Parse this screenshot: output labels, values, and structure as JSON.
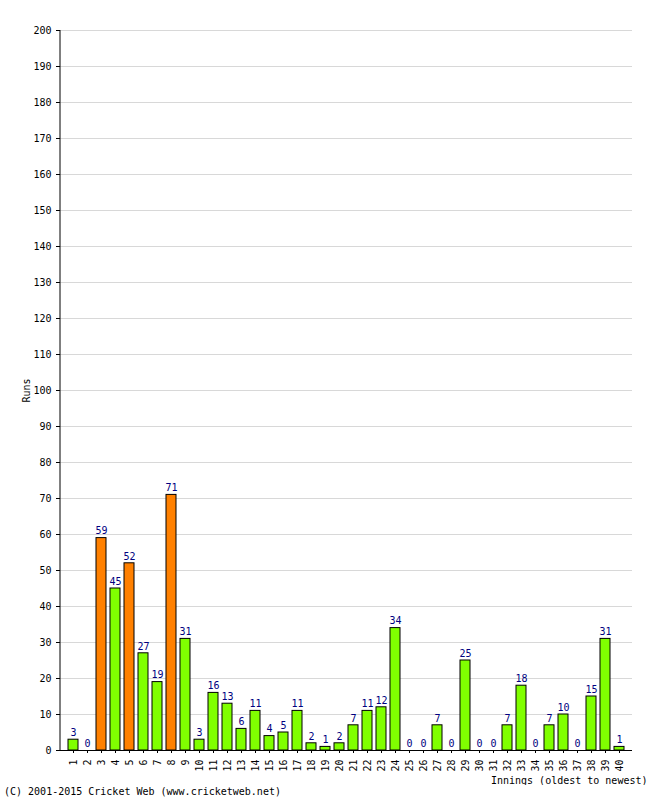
{
  "chart_data": {
    "type": "bar",
    "x_label": "Innings (oldest to newest)",
    "y_label": "Runs",
    "caption": "(C) 2001-2015 Cricket Web (www.cricketweb.net)",
    "categories": [
      "1",
      "2",
      "3",
      "4",
      "5",
      "6",
      "7",
      "8",
      "9",
      "10",
      "11",
      "12",
      "13",
      "14",
      "15",
      "16",
      "17",
      "18",
      "19",
      "20",
      "21",
      "22",
      "23",
      "24",
      "25",
      "26",
      "27",
      "28",
      "29",
      "30",
      "31",
      "32",
      "33",
      "34",
      "35",
      "36",
      "37",
      "38",
      "39",
      "40"
    ],
    "values": [
      3,
      0,
      59,
      45,
      52,
      27,
      19,
      71,
      31,
      3,
      16,
      13,
      6,
      11,
      4,
      5,
      11,
      2,
      1,
      2,
      7,
      11,
      12,
      34,
      0,
      0,
      7,
      0,
      25,
      0,
      0,
      7,
      18,
      0,
      7,
      10,
      0,
      15,
      31,
      1
    ],
    "colors": [
      "#80ff00",
      "#80ff00",
      "#ff8000",
      "#80ff00",
      "#ff8000",
      "#80ff00",
      "#80ff00",
      "#ff8000",
      "#80ff00",
      "#80ff00",
      "#80ff00",
      "#80ff00",
      "#80ff00",
      "#80ff00",
      "#80ff00",
      "#80ff00",
      "#80ff00",
      "#80ff00",
      "#80ff00",
      "#80ff00",
      "#80ff00",
      "#80ff00",
      "#80ff00",
      "#80ff00",
      "#80ff00",
      "#80ff00",
      "#80ff00",
      "#80ff00",
      "#80ff00",
      "#80ff00",
      "#80ff00",
      "#80ff00",
      "#80ff00",
      "#80ff00",
      "#80ff00",
      "#80ff00",
      "#80ff00",
      "#80ff00",
      "#80ff00",
      "#80ff00"
    ],
    "ylim": [
      0,
      200
    ],
    "yticks": [
      0,
      10,
      20,
      30,
      40,
      50,
      60,
      70,
      80,
      90,
      100,
      110,
      120,
      130,
      140,
      150,
      160,
      170,
      180,
      190,
      200
    ],
    "grid": true,
    "data_labels": true
  }
}
